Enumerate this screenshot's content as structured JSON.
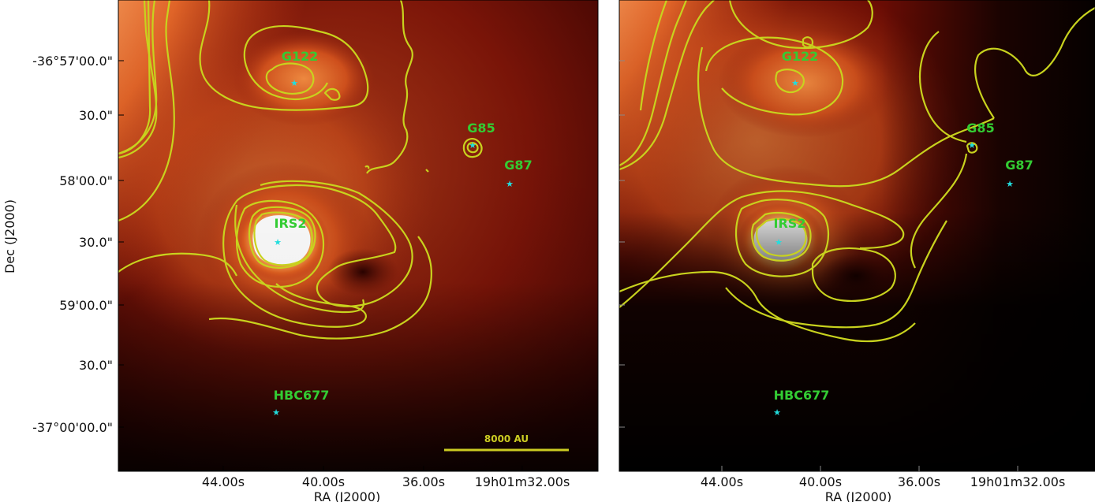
{
  "axes": {
    "ylabel": "Dec (J2000)",
    "xlabel": "RA (J2000)",
    "dec_ticks": [
      "-36°57'00.0\"",
      "30.0\"",
      "58'00.0\"",
      "30.0\"",
      "59'00.0\"",
      "30.0\"",
      "-37°00'00.0\""
    ],
    "ra_ticks": [
      "44.00s",
      "40.00s",
      "36.00s",
      "19h01m32.00s"
    ]
  },
  "sources": [
    {
      "name": "G122"
    },
    {
      "name": "G85"
    },
    {
      "name": "G87"
    },
    {
      "name": "IRS2"
    },
    {
      "name": "HBC677"
    }
  ],
  "scale_bar": {
    "label": "8000 AU"
  },
  "colors": {
    "contour": "#c8d21e",
    "source_label": "#33cc33",
    "star_marker": "#22dddd",
    "scale_bar": "#cccc22"
  },
  "icons": {
    "marker": "star-icon"
  }
}
